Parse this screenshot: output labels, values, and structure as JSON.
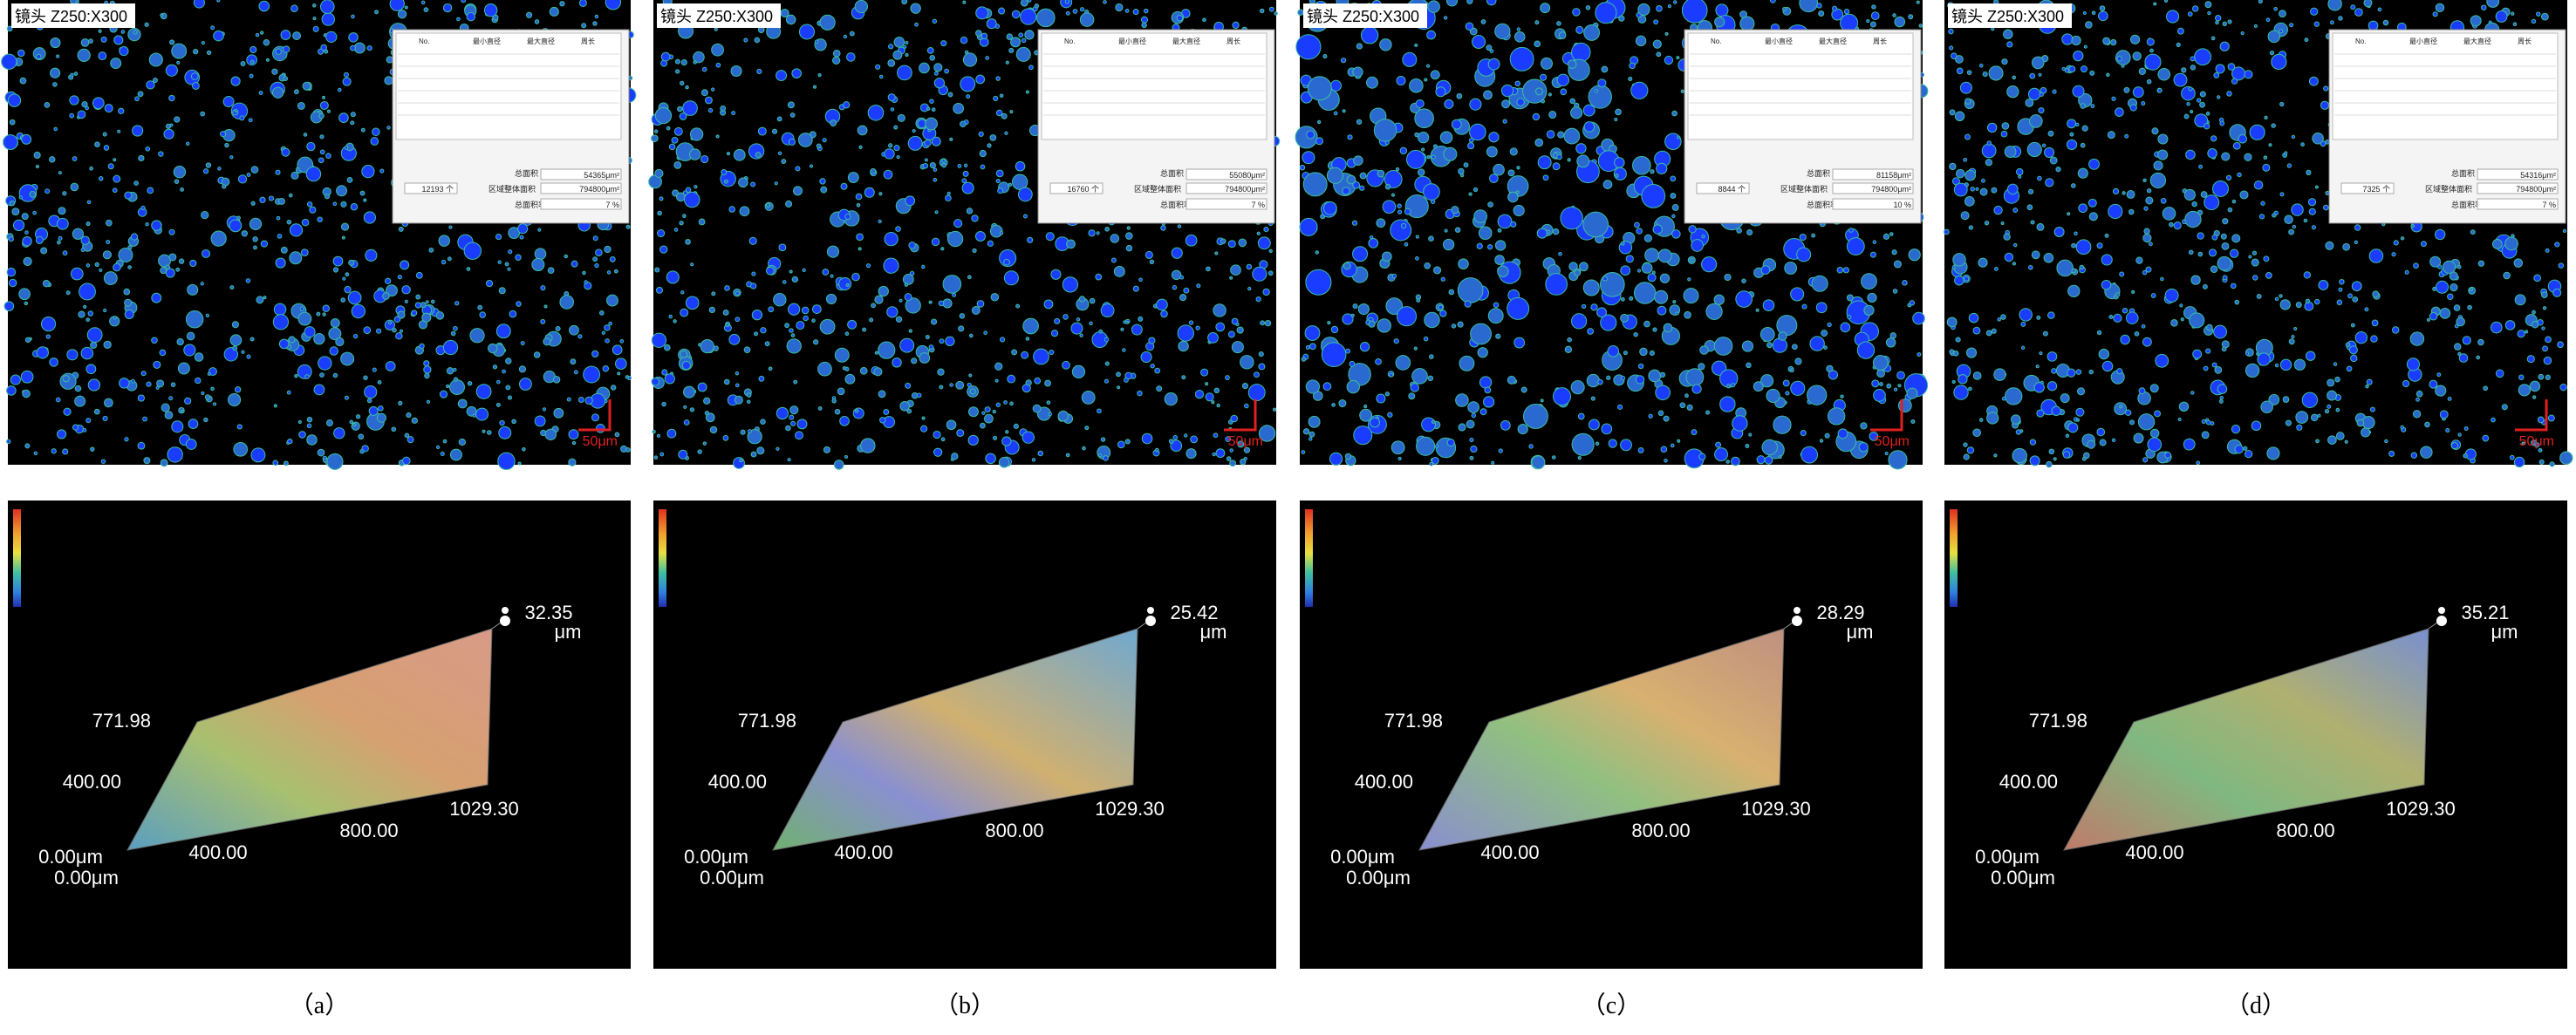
{
  "panels": [
    {
      "lens": "镜头 Z250:X300",
      "scale": "50μm",
      "table": {
        "headers": [
          "No.",
          "最小直径",
          "最大直径",
          "周长"
        ],
        "total_area_label": "总面积",
        "total_area": "54365μm²",
        "region_label": "区域整体面积",
        "region_area": "794800μm²",
        "rate_label": "总面积率",
        "rate": "7 %",
        "count": "12193 个"
      },
      "surface": {
        "z_max": "32.35",
        "z_unit": "μm",
        "y_top": "771.98",
        "y_mid": "400.00",
        "y_origin": "0.00μm",
        "x_origin": "0.00μm",
        "x_1": "400.00",
        "x_2": "800.00",
        "x_end": "1029.30"
      },
      "caption": "（a）"
    },
    {
      "lens": "镜头 Z250:X300",
      "scale": "50μm",
      "table": {
        "headers": [
          "No.",
          "最小直径",
          "最大直径",
          "周长"
        ],
        "total_area_label": "总面积",
        "total_area": "55080μm²",
        "region_label": "区域整体面积",
        "region_area": "794800μm²",
        "rate_label": "总面积率",
        "rate": "7 %",
        "count": "16760 个"
      },
      "surface": {
        "z_max": "25.42",
        "z_unit": "μm",
        "y_top": "771.98",
        "y_mid": "400.00",
        "y_origin": "0.00μm",
        "x_origin": "0.00μm",
        "x_1": "400.00",
        "x_2": "800.00",
        "x_end": "1029.30"
      },
      "caption": "（b）"
    },
    {
      "lens": "镜头 Z250:X300",
      "scale": "50μm",
      "table": {
        "headers": [
          "No.",
          "最小直径",
          "最大直径",
          "周长"
        ],
        "total_area_label": "总面积",
        "total_area": "81158μm²",
        "region_label": "区域整体面积",
        "region_area": "794800μm²",
        "rate_label": "总面积率",
        "rate": "10 %",
        "count": "8844 个"
      },
      "surface": {
        "z_max": "28.29",
        "z_unit": "μm",
        "y_top": "771.98",
        "y_mid": "400.00",
        "y_origin": "0.00μm",
        "x_origin": "0.00μm",
        "x_1": "400.00",
        "x_2": "800.00",
        "x_end": "1029.30"
      },
      "caption": "（c）"
    },
    {
      "lens": "镜头 Z250:X300",
      "scale": "50μm",
      "table": {
        "headers": [
          "No.",
          "最小直径",
          "最大直径",
          "周长"
        ],
        "total_area_label": "总面积",
        "total_area": "54316μm²",
        "region_label": "区域整体面积",
        "region_area": "794800μm²",
        "rate_label": "总面积率",
        "rate": "7 %",
        "count": "7325 个"
      },
      "surface": {
        "z_max": "35.21",
        "z_unit": "μm",
        "y_top": "771.98",
        "y_mid": "400.00",
        "y_origin": "0.00μm",
        "x_origin": "0.00μm",
        "x_1": "400.00",
        "x_2": "800.00",
        "x_end": "1029.30"
      },
      "caption": "（d）"
    }
  ]
}
